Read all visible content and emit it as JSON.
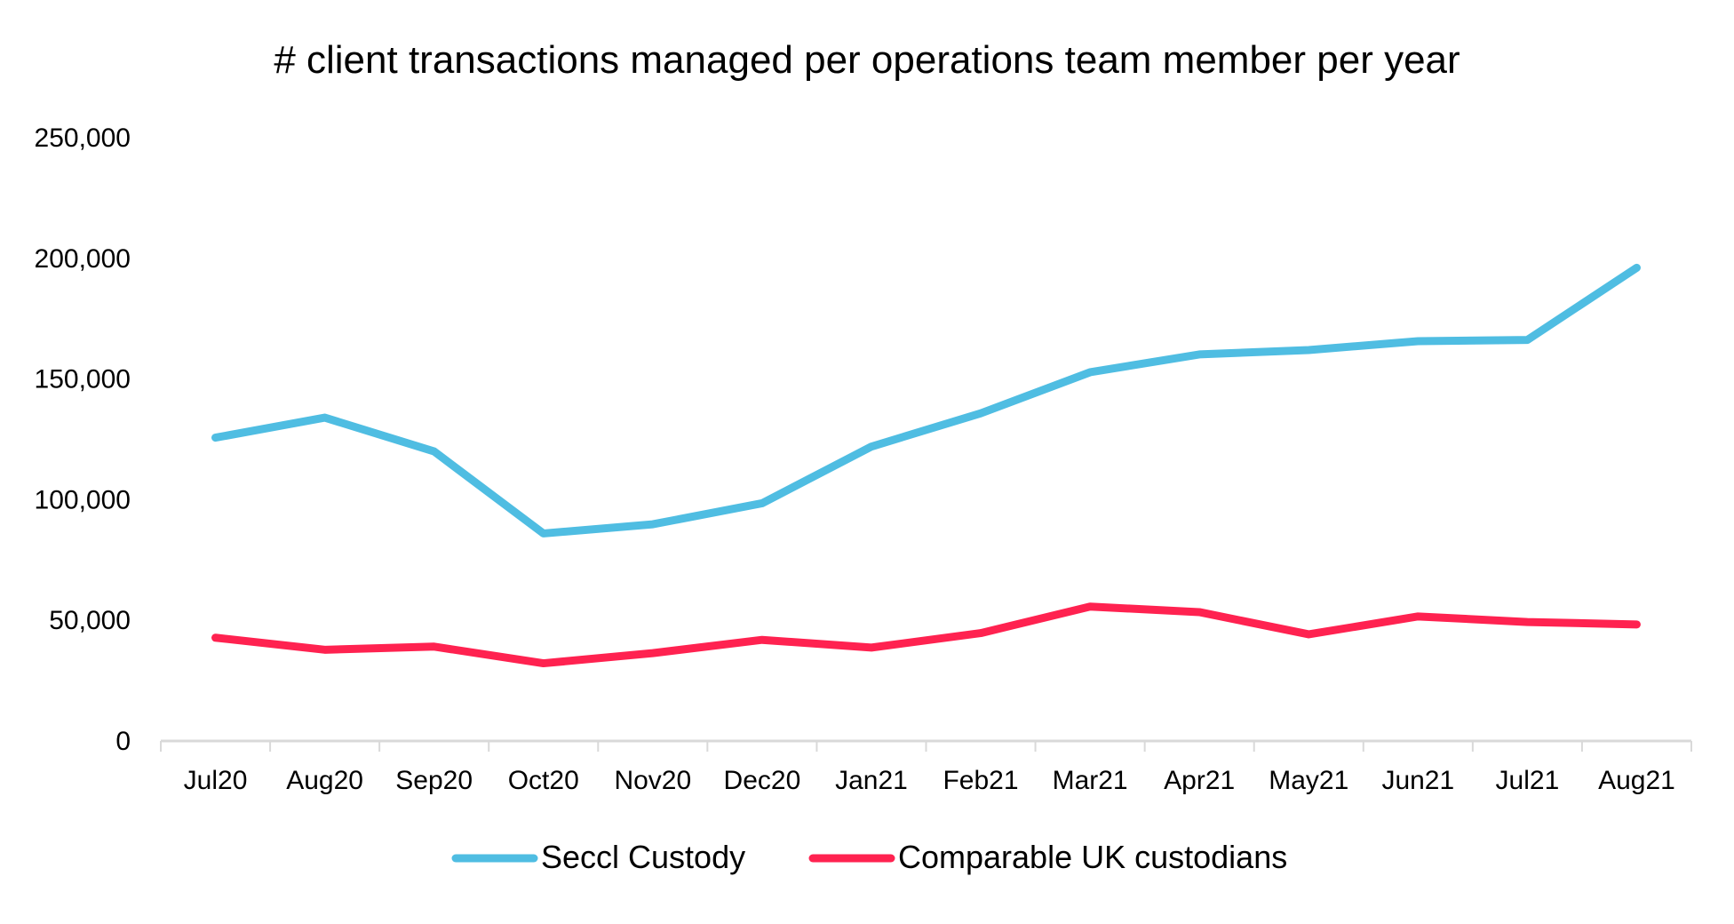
{
  "chart_data": {
    "type": "line",
    "title": "# client transactions managed per operations team member per year",
    "xlabel": "",
    "ylabel": "",
    "categories": [
      "Jul20",
      "Aug20",
      "Sep20",
      "Oct20",
      "Nov20",
      "Dec20",
      "Jan21",
      "Feb21",
      "Mar21",
      "Apr21",
      "May21",
      "Jun21",
      "Jul21",
      "Aug21"
    ],
    "ylim": [
      0,
      250000
    ],
    "yticks": [
      0,
      50000,
      100000,
      150000,
      200000,
      250000
    ],
    "ytick_labels": [
      "0",
      "50,000",
      "100,000",
      "150,000",
      "200,000",
      "250,000"
    ],
    "grid": false,
    "legend_position": "bottom",
    "series": [
      {
        "name": "Seccl Custody",
        "color": "#4FBDE2",
        "values": [
          125700,
          134000,
          120000,
          86000,
          89800,
          98500,
          122000,
          135800,
          152800,
          160200,
          162000,
          165700,
          166200,
          196100
        ]
      },
      {
        "name": "Comparable UK custodians",
        "color": "#FF2250",
        "values": [
          42800,
          37800,
          39100,
          32200,
          36400,
          41900,
          38700,
          44700,
          55700,
          53400,
          44200,
          51600,
          49300,
          48300
        ]
      }
    ]
  }
}
